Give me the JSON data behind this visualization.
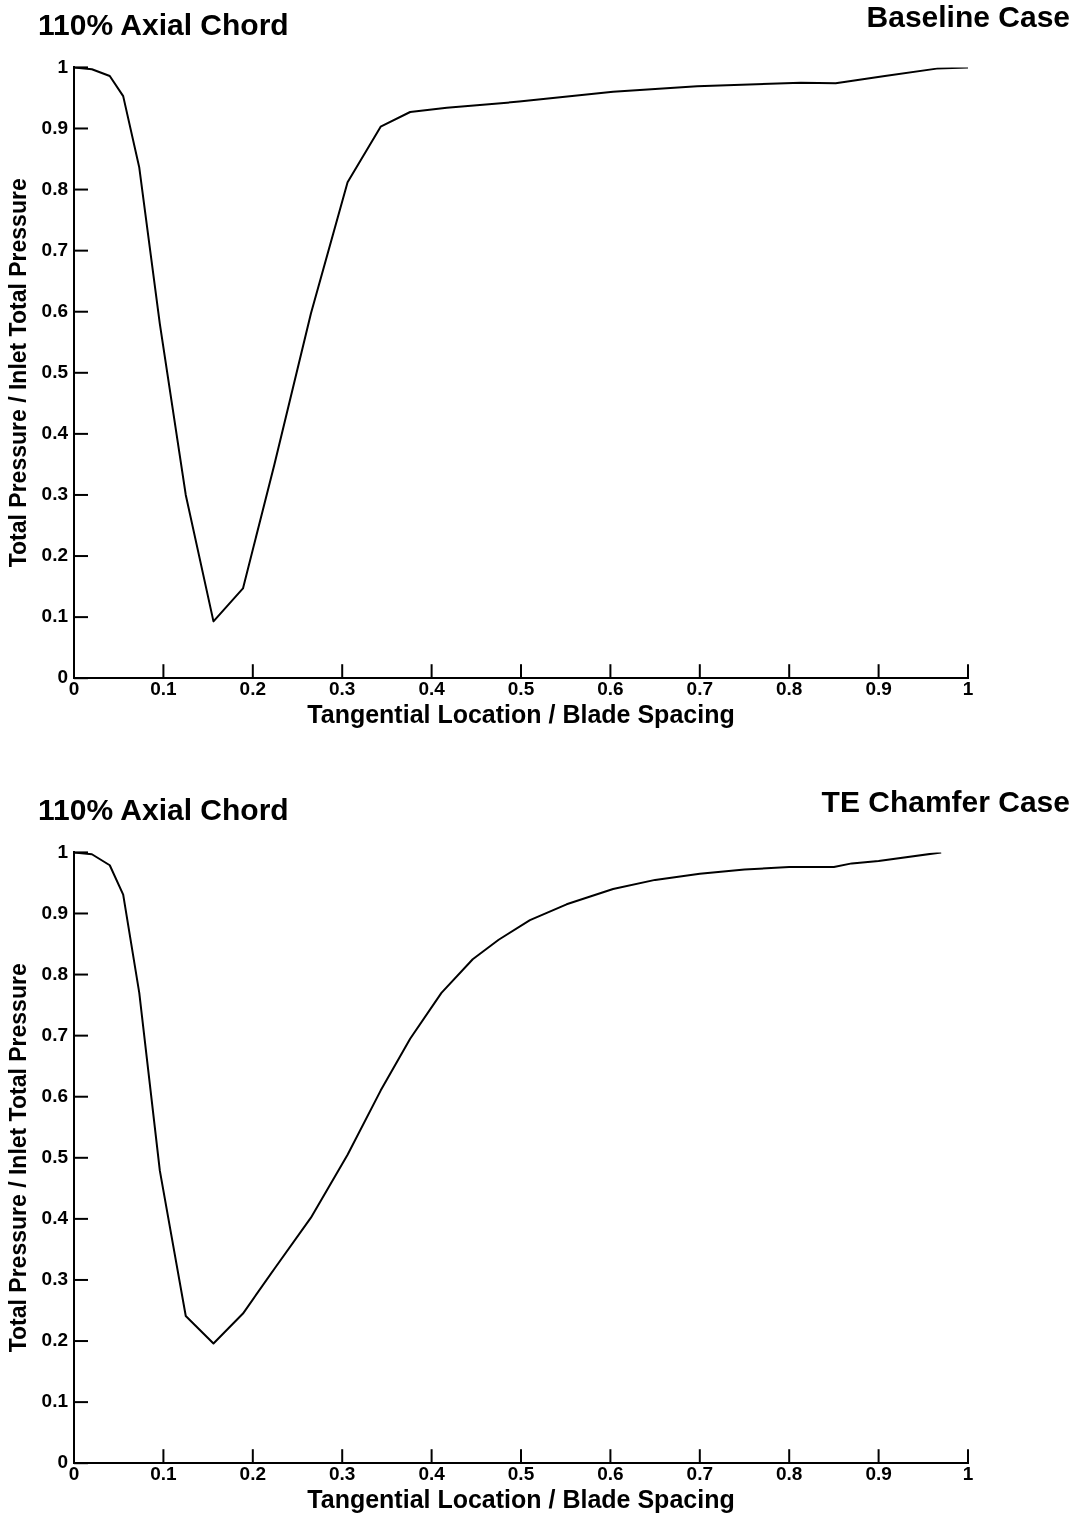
{
  "chart_data": [
    {
      "type": "line",
      "title": "110% Axial Chord",
      "subtitle": "Baseline Case",
      "xlabel": "Tangential Location / Blade Spacing",
      "ylabel": "Total Pressure / Inlet Total Pressure",
      "xlim": [
        0,
        1
      ],
      "ylim": [
        0,
        1
      ],
      "xticks": [
        0,
        0.1,
        0.2,
        0.3,
        0.4,
        0.5,
        0.6,
        0.7,
        0.8,
        0.9,
        1
      ],
      "yticks": [
        0,
        0.1,
        0.2,
        0.3,
        0.4,
        0.5,
        0.6,
        0.7,
        0.8,
        0.9,
        1
      ],
      "grid": false,
      "legend": false,
      "marker": "none",
      "line_style": "solid",
      "series": [
        {
          "color": "#000000",
          "x": [
            0,
            0.02,
            0.04,
            0.055,
            0.073,
            0.096,
            0.125,
            0.156,
            0.189,
            0.224,
            0.265,
            0.306,
            0.343,
            0.376,
            0.417,
            0.498,
            0.603,
            0.697,
            0.813,
            0.852,
            0.907,
            0.965,
            1.0
          ],
          "values": [
            1.0,
            0.997,
            0.986,
            0.953,
            0.836,
            0.58,
            0.3,
            0.093,
            0.147,
            0.349,
            0.597,
            0.812,
            0.903,
            0.927,
            0.934,
            0.944,
            0.96,
            0.969,
            0.975,
            0.974,
            0.986,
            0.998,
            1.0
          ]
        }
      ]
    },
    {
      "type": "line",
      "title": "110% Axial Chord",
      "subtitle": "TE Chamfer Case",
      "xlabel": "Tangential Location / Blade Spacing",
      "ylabel": "Total Pressure / Inlet Total Pressure",
      "xlim": [
        0,
        1
      ],
      "ylim": [
        0,
        1
      ],
      "xticks": [
        0,
        0.1,
        0.2,
        0.3,
        0.4,
        0.5,
        0.6,
        0.7,
        0.8,
        0.9,
        1
      ],
      "yticks": [
        0,
        0.1,
        0.2,
        0.3,
        0.4,
        0.5,
        0.6,
        0.7,
        0.8,
        0.9,
        1
      ],
      "grid": false,
      "legend": false,
      "marker": "none",
      "line_style": "solid",
      "series": [
        {
          "color": "#000000",
          "x": [
            0,
            0.02,
            0.04,
            0.055,
            0.073,
            0.096,
            0.125,
            0.156,
            0.189,
            0.224,
            0.265,
            0.306,
            0.343,
            0.376,
            0.411,
            0.446,
            0.475,
            0.51,
            0.551,
            0.603,
            0.65,
            0.7,
            0.75,
            0.8,
            0.85,
            0.87,
            0.9,
            0.97
          ],
          "values": [
            1.0,
            0.997,
            0.979,
            0.931,
            0.77,
            0.479,
            0.241,
            0.196,
            0.245,
            0.318,
            0.402,
            0.505,
            0.61,
            0.695,
            0.77,
            0.825,
            0.857,
            0.889,
            0.915,
            0.94,
            0.955,
            0.965,
            0.972,
            0.976,
            0.976,
            0.982,
            0.986,
            1.0
          ]
        }
      ]
    }
  ]
}
